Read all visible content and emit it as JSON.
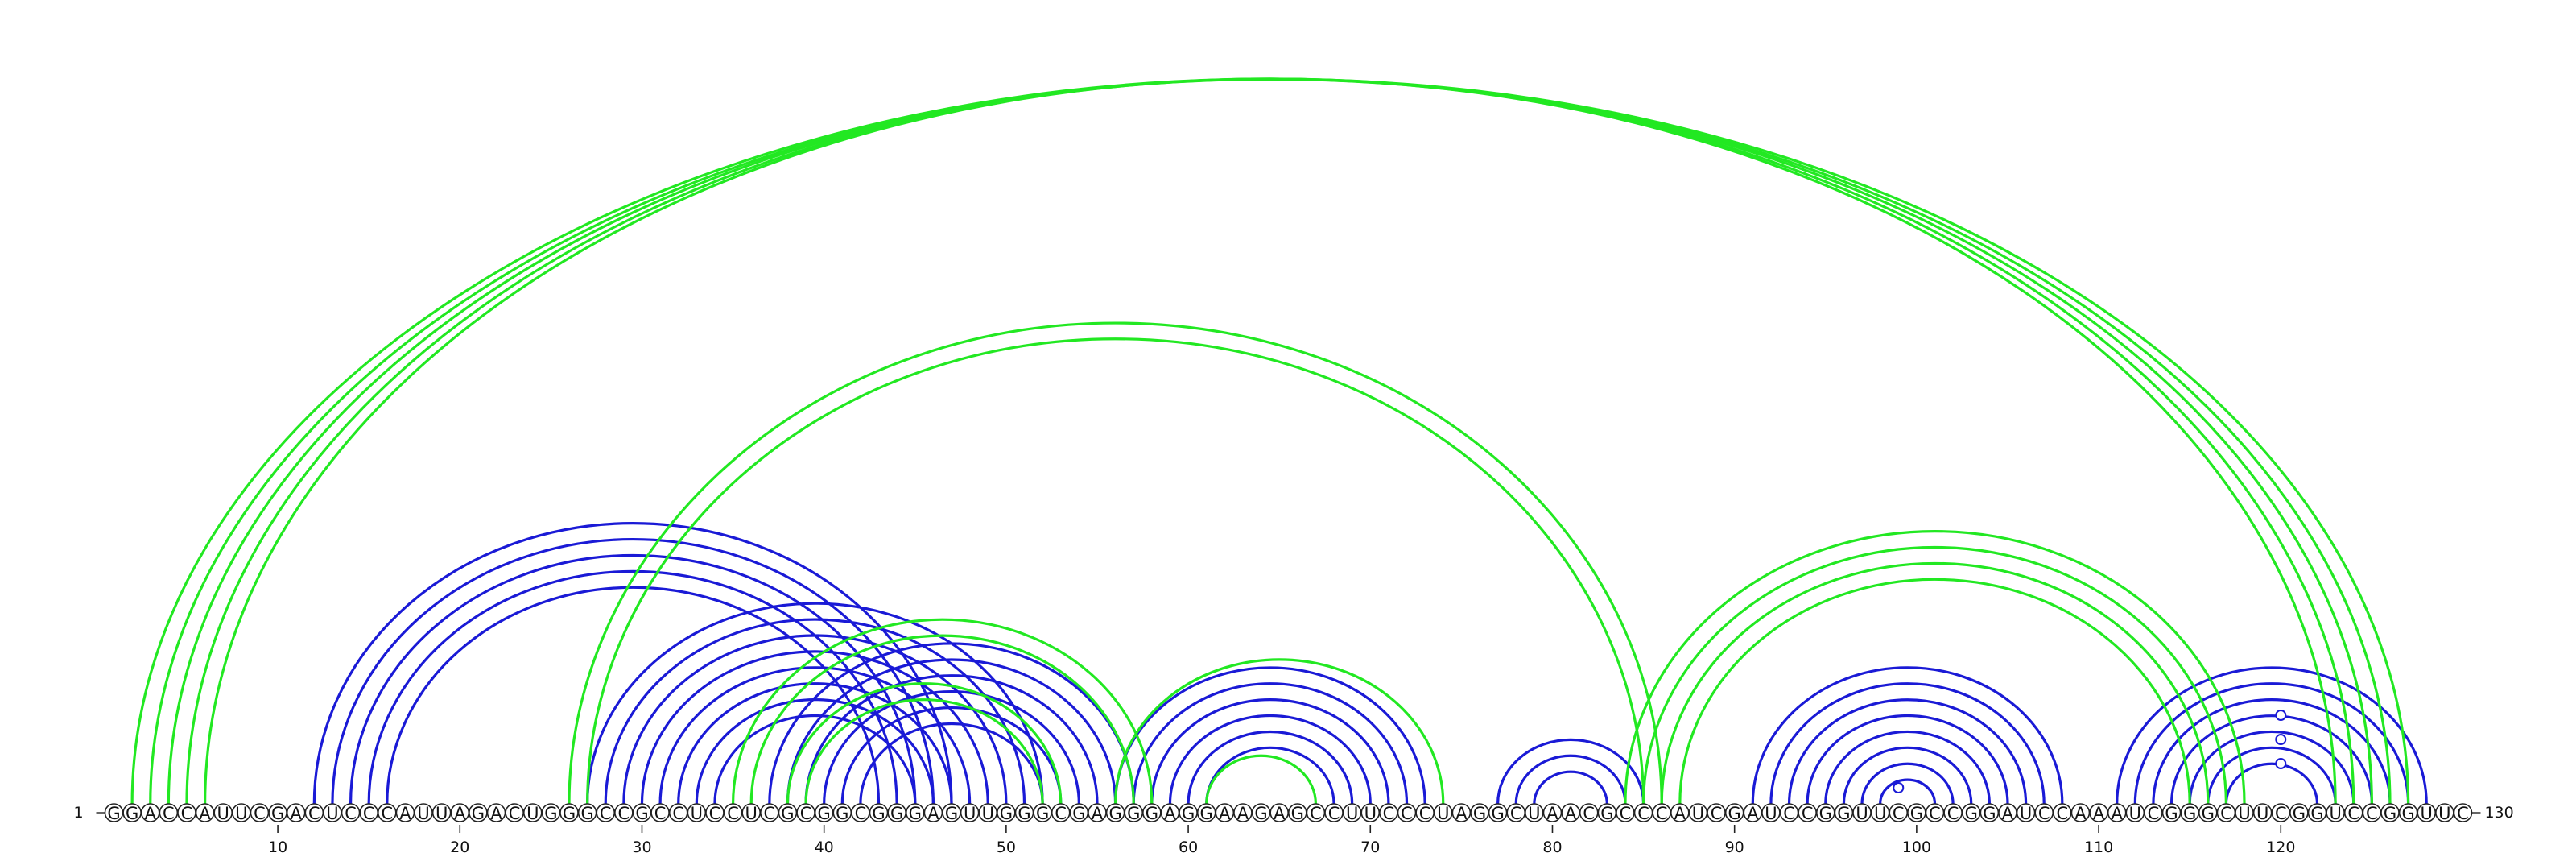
{
  "sequence": "GGACCAUUCGACUCCCAUUAGACUGGGCCGCCUCCUCGCGGCGGGAGUUGGGCGAGGGAGGAAGAGCCUUCCCUAGGCUAACGCCCAUCGAUCCGGUUCGCCGGAUCCAAAUCGGGCUUCGGUCCGGUUC",
  "start_label": "1",
  "end_label": "130",
  "ticks": [
    10,
    20,
    30,
    40,
    50,
    60,
    70,
    80,
    90,
    100,
    110,
    120
  ],
  "colors": {
    "blue": "#1a1ad6",
    "green": "#22e822",
    "backbone": "#333333"
  },
  "blue_helices": [
    {
      "i": 12,
      "j": 47,
      "n": 5
    },
    {
      "i": 27,
      "j": 52,
      "n": 8
    },
    {
      "i": 37,
      "j": 57,
      "n": 6
    },
    {
      "i": 56,
      "j": 73,
      "n": 6
    },
    {
      "i": 77,
      "j": 85,
      "n": 3
    },
    {
      "i": 91,
      "j": 108,
      "n": 8
    },
    {
      "i": 111,
      "j": 128,
      "n": 7
    }
  ],
  "green_helices": [
    {
      "i": 2,
      "j": 127,
      "n": 5
    },
    {
      "i": 26,
      "j": 86,
      "n": 2
    },
    {
      "i": 35,
      "j": 58,
      "n": 2
    },
    {
      "i": 38,
      "j": 53,
      "n": 2
    },
    {
      "i": 61,
      "j": 67,
      "n": 1
    },
    {
      "i": 56,
      "j": 74,
      "n": 1
    },
    {
      "i": 84,
      "j": 118,
      "n": 4
    }
  ],
  "gu_pairs": [
    [
      98,
      100
    ],
    [
      119,
      121
    ],
    [
      119,
      121
    ],
    [
      119,
      121
    ]
  ]
}
